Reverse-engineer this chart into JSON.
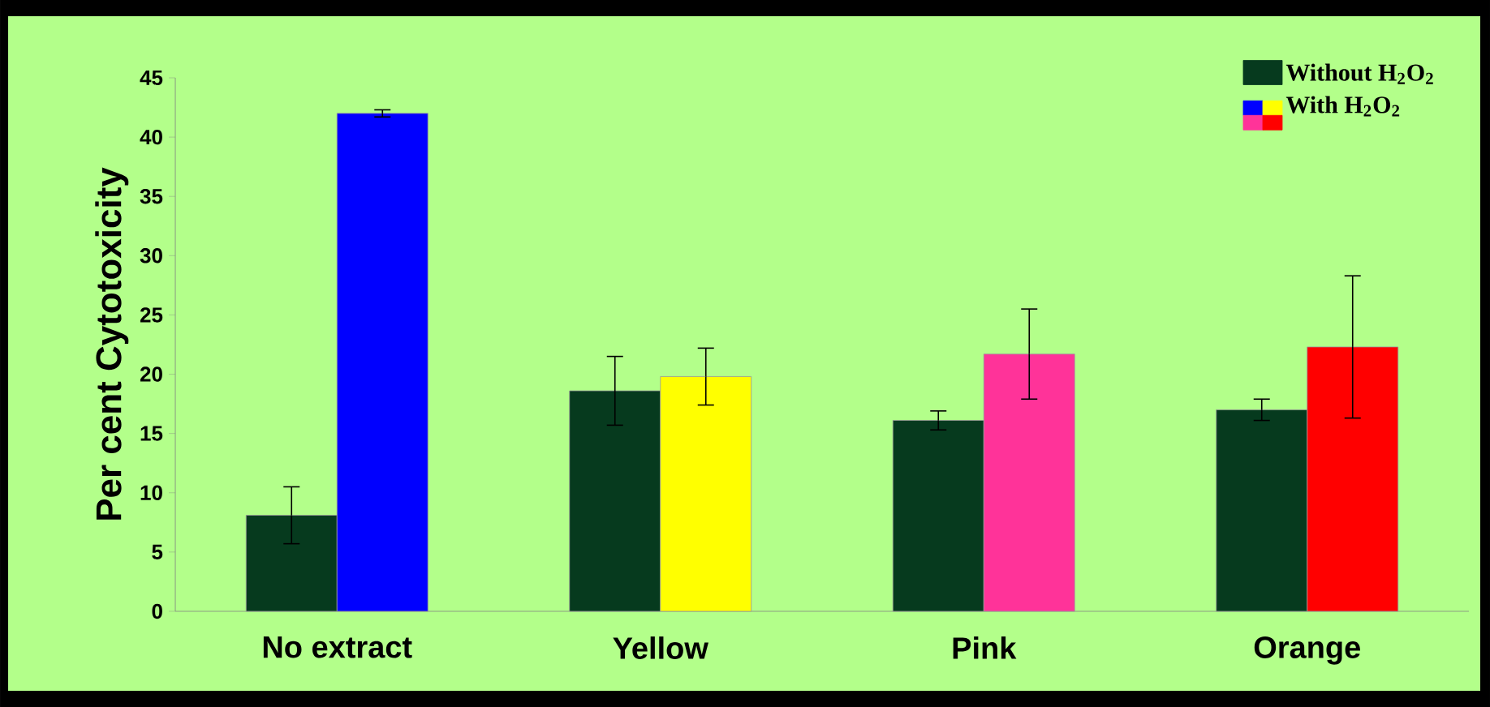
{
  "chart_data": {
    "type": "bar",
    "categories": [
      "No extract",
      "Yellow",
      "Pink",
      "Orange"
    ],
    "ylabel": "Per cent Cytotoxicity",
    "ylim": [
      0,
      45
    ],
    "yticks": [
      0,
      5,
      10,
      15,
      20,
      25,
      30,
      35,
      40,
      45
    ],
    "legend": "top right",
    "series": [
      {
        "name": "Without H$_{2}$O$_{2}$",
        "color": "#063a1e",
        "values": [
          8.1,
          18.6,
          16.1,
          17.0
        ],
        "errors": [
          2.4,
          2.9,
          0.8,
          0.9
        ]
      },
      {
        "name": "With H$_{2}$O$_{2}$",
        "colors": [
          "#0000ff",
          "#ffff00",
          "#ff3399",
          "#ff0000"
        ],
        "values": [
          42.0,
          19.8,
          21.7,
          22.3
        ],
        "errors": [
          0.3,
          2.4,
          3.8,
          6.0
        ]
      }
    ]
  }
}
